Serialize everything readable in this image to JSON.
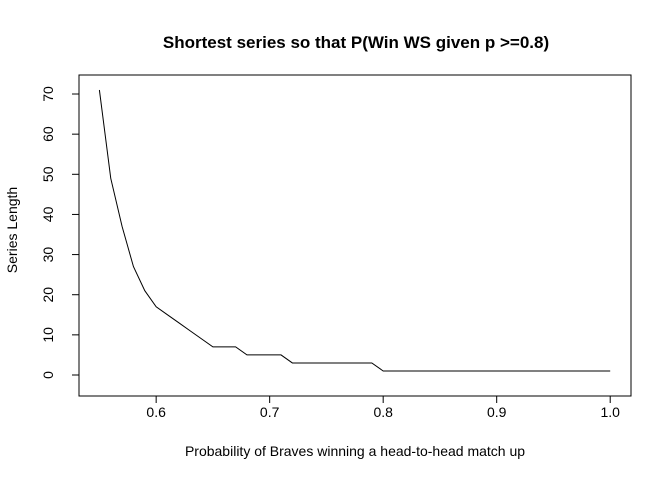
{
  "chart_data": {
    "type": "line",
    "title": "Shortest series so that P(Win WS given p >=0.8)",
    "xlabel": "Probability of Braves winning a head-to-head match up",
    "ylabel": "Series Length",
    "xlim": [
      0.55,
      1.0
    ],
    "ylim": [
      0,
      71
    ],
    "x_ticks": [
      0.6,
      0.7,
      0.8,
      0.9,
      1.0
    ],
    "x_tick_labels": [
      "0.6",
      "0.7",
      "0.8",
      "0.9",
      "1.0"
    ],
    "y_ticks": [
      0,
      10,
      20,
      30,
      40,
      50,
      60,
      70
    ],
    "y_tick_labels": [
      "0",
      "10",
      "20",
      "30",
      "40",
      "50",
      "60",
      "70"
    ],
    "grid": false,
    "line_color": "#000000",
    "series": [
      {
        "x": [
          0.55,
          0.56,
          0.57,
          0.58,
          0.59,
          0.6,
          0.61,
          0.62,
          0.63,
          0.64,
          0.65,
          0.66,
          0.67,
          0.68,
          0.69,
          0.7,
          0.71,
          0.72,
          0.73,
          0.74,
          0.75,
          0.76,
          0.77,
          0.78,
          0.79,
          0.8,
          0.81,
          0.82,
          0.83,
          0.84,
          0.85,
          0.86,
          0.87,
          0.88,
          0.89,
          0.9,
          0.91,
          0.92,
          0.93,
          0.94,
          0.95,
          0.96,
          0.97,
          0.98,
          0.99,
          1.0
        ],
        "y": [
          71,
          49,
          37,
          27,
          21,
          17,
          15,
          13,
          11,
          9,
          7,
          7,
          7,
          5,
          5,
          5,
          5,
          3,
          3,
          3,
          3,
          3,
          3,
          3,
          3,
          1,
          1,
          1,
          1,
          1,
          1,
          1,
          1,
          1,
          1,
          1,
          1,
          1,
          1,
          1,
          1,
          1,
          1,
          1,
          1,
          1
        ]
      }
    ]
  }
}
